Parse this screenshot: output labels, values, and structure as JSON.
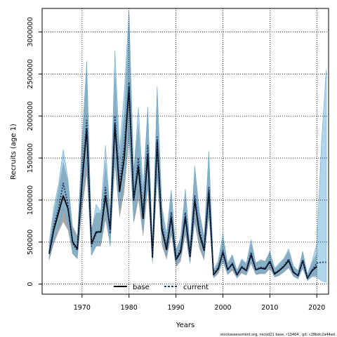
{
  "chart_data": {
    "type": "line",
    "xlabel": "Years",
    "ylabel": "Recruits (age 1)",
    "xlim": [
      1961.5,
      2022.5
    ],
    "ylim": [
      -120000,
      3280000
    ],
    "x_ticks": [
      1970,
      1980,
      1990,
      2000,
      2010,
      2020
    ],
    "y_ticks": [
      0,
      500000,
      1000000,
      1500000,
      2000000,
      2500000,
      3000000
    ],
    "grid": true,
    "legend_position": "bottom-center",
    "footnote": "stockassessment.org, nscod21 base, r13464 , git: c28bdc2a44ad",
    "colors": {
      "base": "#000000",
      "current": "#1a3a6e",
      "band_base": "#8a8a8a",
      "band_current": "#6fb4dc"
    },
    "years": [
      1963,
      1964,
      1965,
      1966,
      1967,
      1968,
      1969,
      1970,
      1971,
      1972,
      1973,
      1974,
      1975,
      1976,
      1977,
      1978,
      1979,
      1980,
      1981,
      1982,
      1983,
      1984,
      1985,
      1986,
      1987,
      1988,
      1989,
      1990,
      1991,
      1992,
      1993,
      1994,
      1995,
      1996,
      1997,
      1998,
      1999,
      2000,
      2001,
      2002,
      2003,
      2004,
      2005,
      2006,
      2007,
      2008,
      2009,
      2010,
      2011,
      2012,
      2013,
      2014,
      2015,
      2016,
      2017,
      2018,
      2019,
      2020,
      2021,
      2022
    ],
    "series": [
      {
        "name": "base",
        "style": "solid",
        "values": [
          360000,
          650000,
          850000,
          1050000,
          900000,
          500000,
          420000,
          1200000,
          1850000,
          480000,
          620000,
          620000,
          1050000,
          650000,
          1900000,
          1100000,
          1500000,
          2350000,
          1000000,
          1400000,
          780000,
          1550000,
          320000,
          1700000,
          650000,
          410000,
          800000,
          290000,
          380000,
          800000,
          330000,
          1000000,
          600000,
          400000,
          1100000,
          110000,
          180000,
          380000,
          170000,
          240000,
          110000,
          200000,
          160000,
          350000,
          170000,
          190000,
          180000,
          270000,
          120000,
          160000,
          210000,
          280000,
          140000,
          100000,
          280000,
          70000,
          160000,
          210000,
          null,
          null
        ],
        "lower": [
          280000,
          480000,
          620000,
          740000,
          640000,
          360000,
          300000,
          870000,
          1300000,
          340000,
          450000,
          450000,
          760000,
          460000,
          1400000,
          790000,
          1100000,
          1700000,
          720000,
          1000000,
          560000,
          1120000,
          230000,
          1240000,
          460000,
          290000,
          580000,
          200000,
          270000,
          580000,
          230000,
          720000,
          420000,
          280000,
          790000,
          70000,
          120000,
          260000,
          110000,
          160000,
          70000,
          130000,
          100000,
          240000,
          110000,
          120000,
          120000,
          180000,
          80000,
          100000,
          140000,
          190000,
          90000,
          60000,
          180000,
          40000,
          90000,
          100000,
          null,
          null
        ],
        "upper": [
          460000,
          860000,
          1140000,
          1450000,
          1230000,
          690000,
          580000,
          1650000,
          2600000,
          670000,
          850000,
          850000,
          1450000,
          900000,
          2580000,
          1520000,
          2050000,
          3200000,
          1380000,
          1920000,
          1080000,
          2130000,
          440000,
          2330000,
          900000,
          570000,
          1100000,
          410000,
          530000,
          1100000,
          470000,
          1390000,
          840000,
          560000,
          1530000,
          160000,
          260000,
          550000,
          250000,
          350000,
          170000,
          290000,
          240000,
          500000,
          250000,
          280000,
          270000,
          390000,
          180000,
          240000,
          300000,
          400000,
          210000,
          160000,
          390000,
          110000,
          260000,
          370000,
          null,
          null
        ]
      },
      {
        "name": "current",
        "style": "dotted",
        "values": [
          380000,
          700000,
          900000,
          1200000,
          950000,
          480000,
          400000,
          1300000,
          1950000,
          450000,
          600000,
          650000,
          1150000,
          600000,
          2000000,
          1200000,
          1650000,
          2400000,
          1000000,
          1500000,
          850000,
          1650000,
          350000,
          1750000,
          700000,
          450000,
          850000,
          300000,
          420000,
          850000,
          350000,
          1050000,
          650000,
          420000,
          1150000,
          120000,
          200000,
          400000,
          170000,
          250000,
          110000,
          210000,
          170000,
          380000,
          170000,
          200000,
          190000,
          280000,
          130000,
          170000,
          220000,
          300000,
          150000,
          100000,
          290000,
          70000,
          170000,
          250000,
          260000,
          260000
        ],
        "lower": [
          290000,
          530000,
          680000,
          900000,
          720000,
          360000,
          300000,
          980000,
          1470000,
          340000,
          450000,
          490000,
          870000,
          450000,
          1510000,
          900000,
          1240000,
          1810000,
          750000,
          1130000,
          640000,
          1240000,
          260000,
          1320000,
          530000,
          340000,
          640000,
          230000,
          320000,
          640000,
          260000,
          790000,
          490000,
          320000,
          870000,
          80000,
          140000,
          280000,
          120000,
          180000,
          70000,
          150000,
          120000,
          270000,
          120000,
          140000,
          130000,
          200000,
          90000,
          110000,
          150000,
          210000,
          100000,
          60000,
          190000,
          40000,
          90000,
          80000,
          40000,
          20000
        ],
        "upper": [
          500000,
          920000,
          1190000,
          1600000,
          1250000,
          640000,
          530000,
          1720000,
          2650000,
          600000,
          950000,
          860000,
          1650000,
          800000,
          2780000,
          1600000,
          2300000,
          3250000,
          1320000,
          2100000,
          1130000,
          2100000,
          460000,
          2350000,
          930000,
          600000,
          1120000,
          400000,
          560000,
          1130000,
          470000,
          1400000,
          860000,
          560000,
          1580000,
          170000,
          280000,
          600000,
          240000,
          350000,
          160000,
          300000,
          250000,
          530000,
          250000,
          290000,
          270000,
          390000,
          190000,
          250000,
          310000,
          420000,
          220000,
          160000,
          390000,
          120000,
          280000,
          480000,
          1700000,
          2550000
        ]
      }
    ]
  }
}
